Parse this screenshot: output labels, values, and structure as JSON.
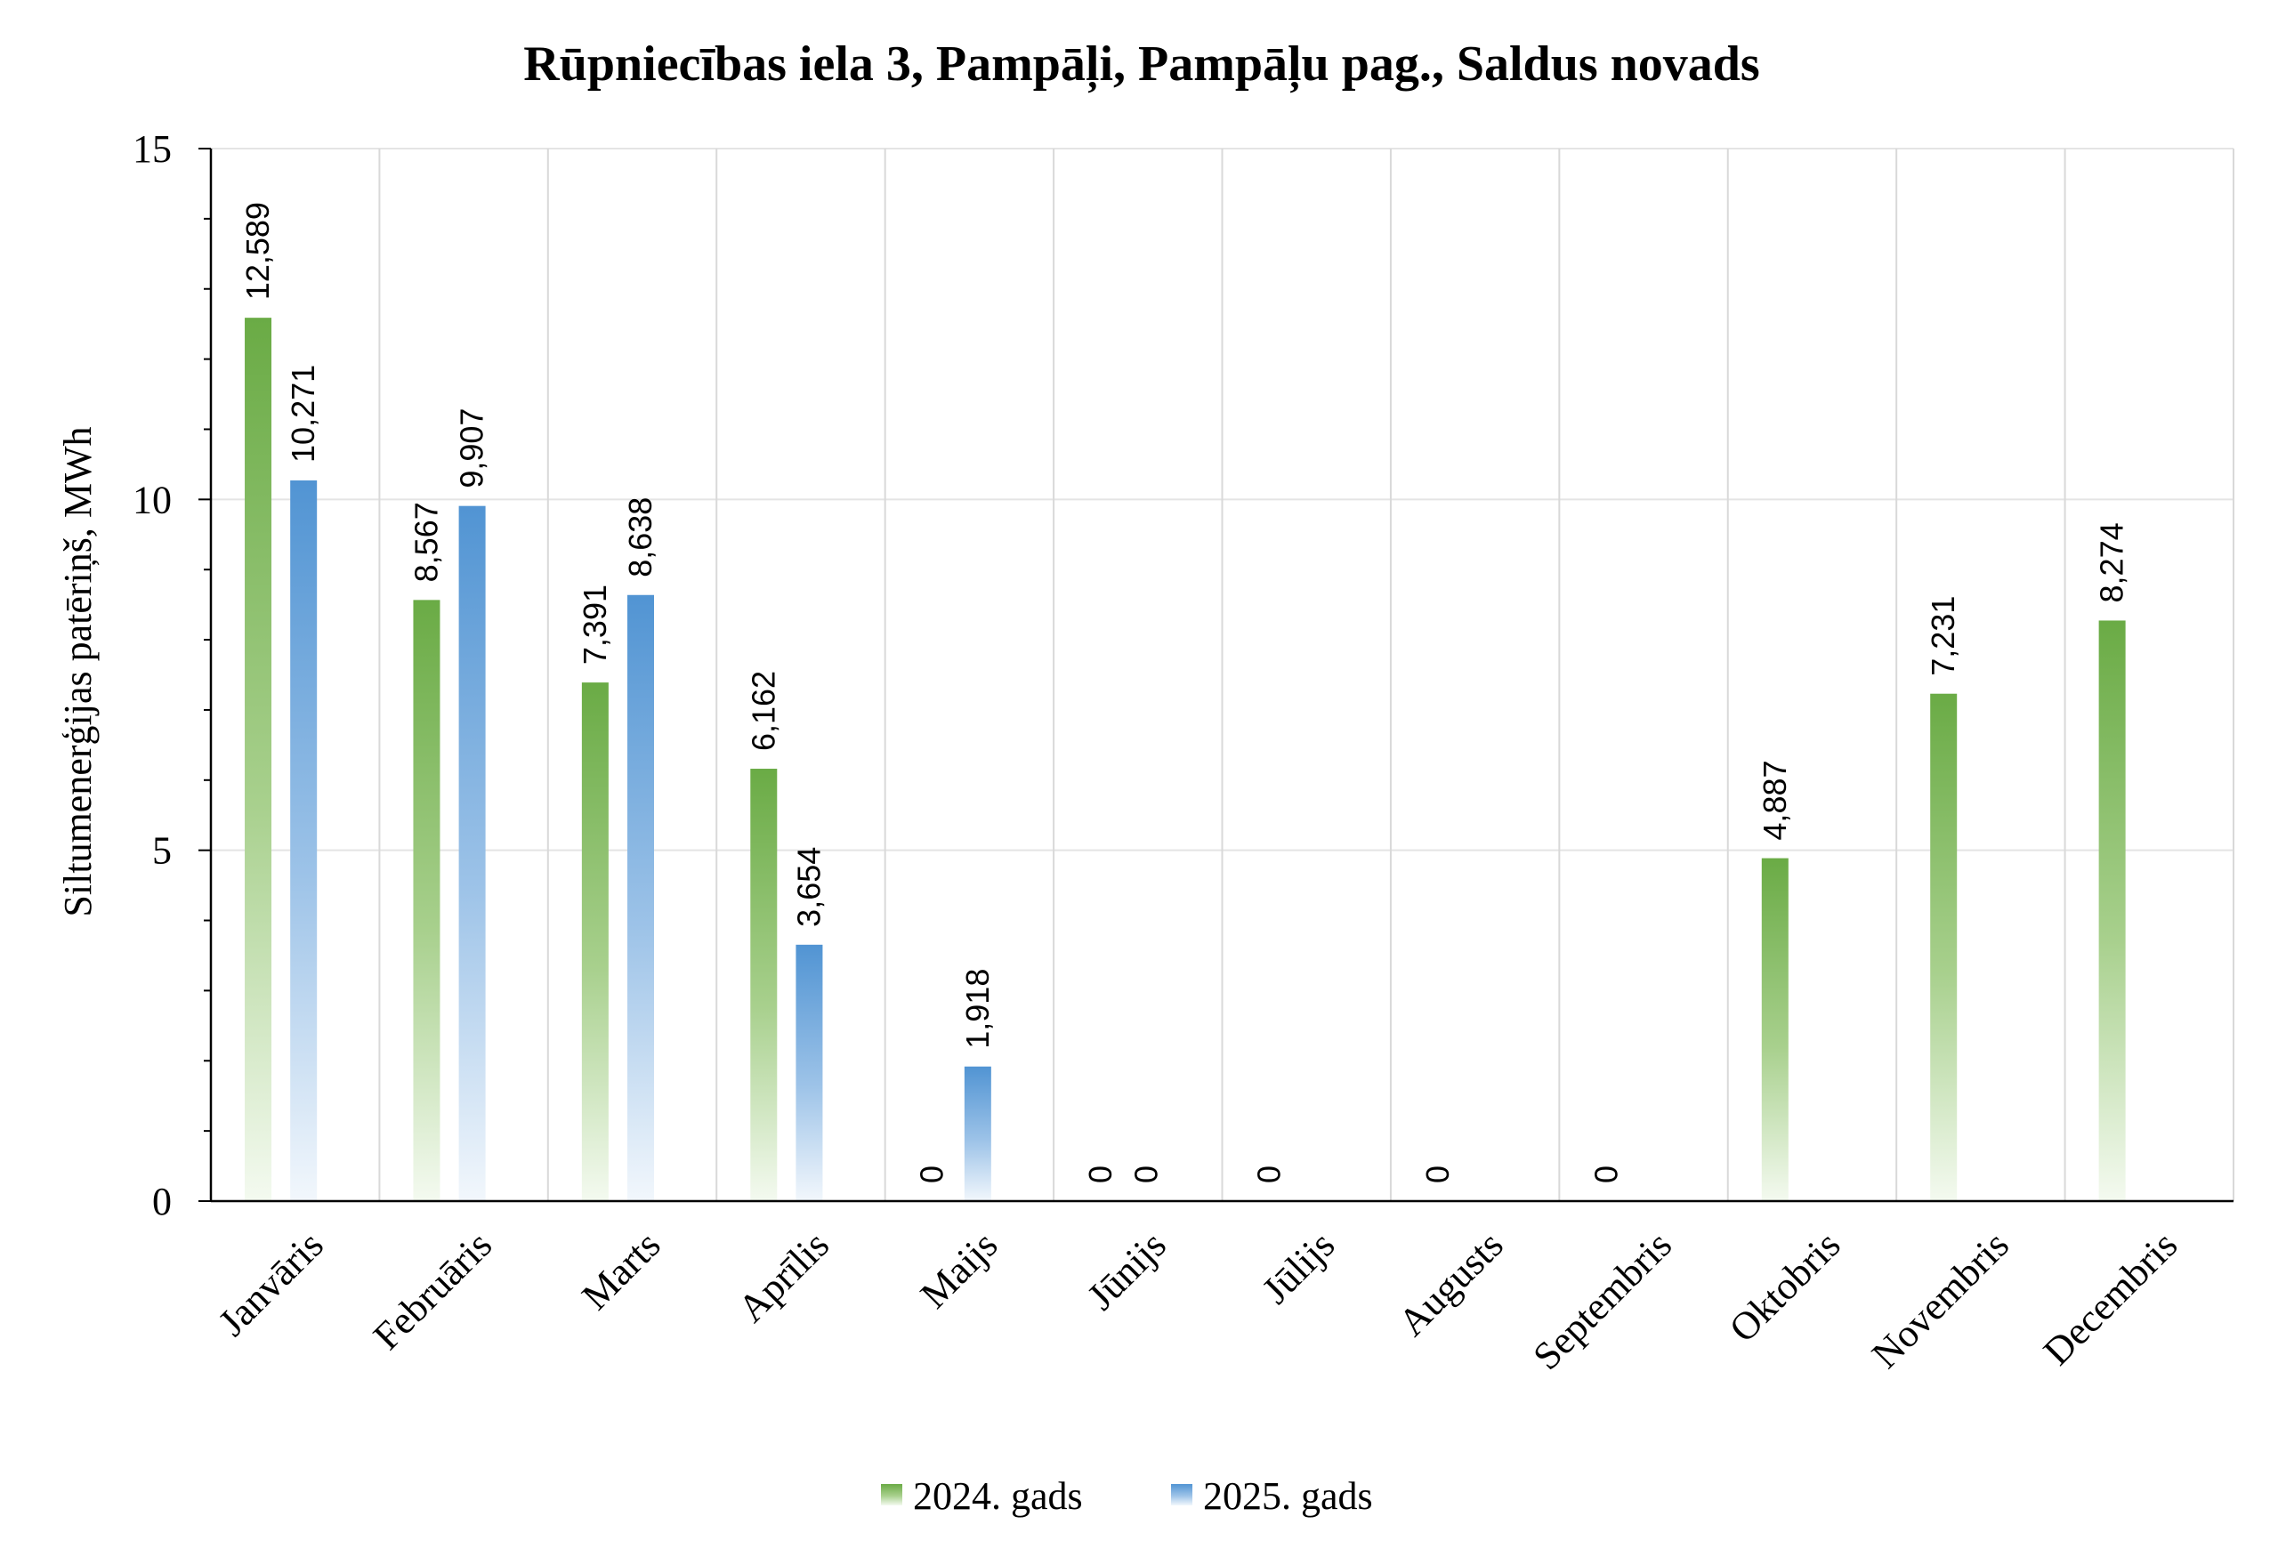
{
  "chart_data": {
    "type": "bar",
    "title": "Rūpniecības iela 3, Pampāļi, Pampāļu pag., Saldus novads",
    "ylabel": "Siltumenerģijas patēriņš, MWh",
    "xlabel": "",
    "ylim": [
      0,
      15
    ],
    "yticks": [
      "0",
      "5",
      "10",
      "15"
    ],
    "categories": [
      "Janvāris",
      "Februāris",
      "Marts",
      "Aprīlis",
      "Maijs",
      "Jūnijs",
      "Jūlijs",
      "Augusts",
      "Septembris",
      "Oktobris",
      "Novembris",
      "Decembris"
    ],
    "series": [
      {
        "name": "2024. gads",
        "color": "#70ad47",
        "values": [
          12.589,
          8.567,
          7.391,
          6.162,
          0,
          0,
          0,
          0,
          0,
          4.887,
          7.231,
          8.274
        ],
        "labels": [
          "12,589",
          "8,567",
          "7,391",
          "6,162",
          "0",
          "0",
          "0",
          "0",
          "0",
          "4,887",
          "7,231",
          "8,274"
        ]
      },
      {
        "name": "2025. gads",
        "color": "#5b9bd5",
        "values": [
          10.271,
          9.907,
          8.638,
          3.654,
          1.918,
          0,
          null,
          null,
          null,
          null,
          null,
          null
        ],
        "labels": [
          "10,271",
          "9,907",
          "8,638",
          "3,654",
          "1,918",
          "0",
          "",
          "",
          "",
          "",
          "",
          ""
        ]
      }
    ],
    "grid": true,
    "legend_position": "bottom"
  }
}
